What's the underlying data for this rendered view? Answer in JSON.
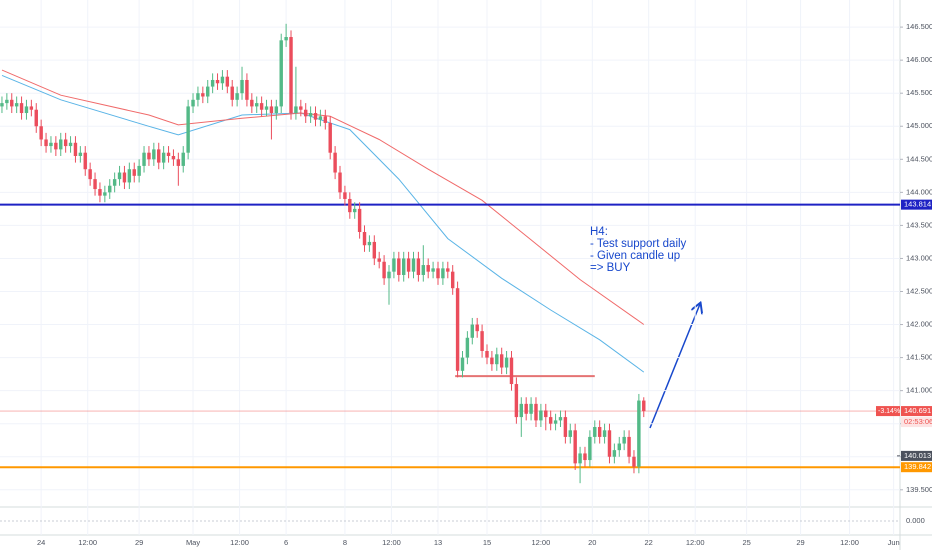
{
  "chart_data": {
    "type": "candlestick",
    "up_color": "#53b987",
    "down_color": "#eb4d5c",
    "open": [
      145.3,
      145.35,
      145.4,
      145.3,
      145.35,
      145.2,
      145.3,
      145.25,
      145.0,
      144.8,
      144.7,
      144.75,
      144.65,
      144.8,
      144.7,
      144.75,
      144.55,
      144.6,
      144.35,
      144.2,
      144.05,
      143.95,
      144.0,
      144.1,
      144.2,
      144.3,
      144.15,
      144.35,
      144.25,
      144.4,
      144.6,
      144.5,
      144.65,
      144.45,
      144.6,
      144.55,
      144.5,
      144.4,
      144.6,
      145.3,
      145.4,
      145.5,
      145.45,
      145.6,
      145.7,
      145.65,
      145.75,
      145.6,
      145.4,
      145.5,
      145.7,
      145.4,
      145.3,
      145.35,
      145.25,
      145.3,
      145.2,
      145.3,
      146.3,
      146.35,
      145.2,
      145.3,
      145.25,
      145.15,
      145.2,
      145.1,
      145.15,
      145.05,
      144.6,
      144.3,
      144.0,
      143.9,
      143.7,
      143.75,
      143.4,
      143.2,
      143.25,
      143.0,
      142.95,
      142.7,
      142.8,
      143.0,
      142.75,
      143.0,
      142.8,
      143.0,
      142.75,
      142.9,
      142.8,
      142.85,
      142.7,
      142.85,
      142.8,
      142.55,
      141.3,
      141.5,
      141.8,
      142.0,
      141.9,
      141.6,
      141.5,
      141.4,
      141.55,
      141.35,
      141.5,
      141.1,
      140.6,
      140.8,
      140.65,
      140.8,
      140.55,
      140.7,
      140.6,
      140.5,
      140.55,
      140.6,
      140.3,
      140.4,
      139.9,
      140.05,
      139.95,
      140.3,
      140.45,
      140.3,
      140.4,
      140.0,
      140.1,
      140.2,
      140.3,
      140.0,
      139.85,
      140.85
    ],
    "high": [
      145.45,
      145.5,
      145.5,
      145.45,
      145.45,
      145.4,
      145.4,
      145.35,
      145.1,
      144.9,
      144.85,
      144.85,
      144.9,
      144.9,
      144.85,
      144.85,
      144.7,
      144.7,
      144.45,
      144.3,
      144.15,
      144.1,
      144.2,
      144.3,
      144.4,
      144.4,
      144.45,
      144.45,
      144.5,
      144.7,
      144.7,
      144.75,
      144.75,
      144.7,
      144.7,
      144.65,
      144.6,
      144.7,
      145.4,
      145.5,
      145.6,
      145.6,
      145.7,
      145.8,
      145.8,
      145.85,
      145.85,
      145.7,
      145.6,
      145.9,
      145.8,
      145.5,
      145.45,
      145.45,
      145.4,
      145.4,
      145.4,
      146.4,
      146.55,
      146.45,
      145.9,
      145.4,
      145.35,
      145.3,
      145.3,
      145.25,
      145.25,
      145.15,
      144.7,
      144.4,
      144.1,
      144.0,
      143.85,
      143.85,
      143.5,
      143.35,
      143.35,
      143.1,
      143.05,
      142.9,
      143.1,
      143.1,
      143.1,
      143.1,
      143.1,
      143.1,
      143.2,
      143.0,
      142.95,
      142.95,
      142.95,
      142.95,
      142.9,
      142.65,
      141.6,
      141.9,
      142.1,
      142.1,
      142.0,
      141.7,
      141.6,
      141.65,
      141.65,
      141.6,
      141.6,
      141.2,
      140.9,
      140.9,
      140.9,
      140.9,
      140.8,
      140.8,
      140.7,
      140.65,
      140.7,
      140.7,
      140.5,
      140.5,
      140.15,
      140.15,
      140.4,
      140.55,
      140.55,
      140.5,
      140.5,
      140.2,
      140.3,
      140.4,
      140.4,
      140.1,
      140.95,
      140.9
    ],
    "low": [
      145.2,
      145.25,
      145.2,
      145.2,
      145.1,
      145.1,
      145.15,
      144.9,
      144.7,
      144.6,
      144.6,
      144.55,
      144.55,
      144.6,
      144.6,
      144.45,
      144.45,
      144.25,
      144.1,
      143.95,
      143.85,
      143.85,
      143.9,
      144.0,
      144.1,
      144.05,
      144.05,
      144.15,
      144.15,
      144.3,
      144.4,
      144.4,
      144.35,
      144.35,
      144.45,
      144.4,
      144.1,
      144.3,
      144.5,
      145.2,
      145.3,
      145.35,
      145.35,
      145.5,
      145.55,
      145.55,
      145.5,
      145.3,
      145.3,
      145.4,
      145.3,
      145.2,
      145.2,
      145.15,
      145.15,
      144.8,
      145.1,
      145.2,
      146.2,
      145.1,
      145.1,
      145.15,
      145.05,
      145.05,
      145.0,
      145.0,
      144.95,
      144.5,
      144.2,
      143.9,
      143.8,
      143.6,
      143.6,
      143.3,
      143.1,
      143.1,
      142.9,
      142.85,
      142.6,
      142.3,
      142.7,
      142.65,
      142.65,
      142.7,
      142.7,
      142.65,
      142.65,
      142.7,
      142.7,
      142.6,
      142.6,
      142.7,
      142.45,
      141.2,
      141.2,
      141.4,
      141.7,
      141.8,
      141.5,
      141.4,
      141.3,
      141.3,
      141.25,
      141.25,
      141.0,
      140.5,
      140.3,
      140.55,
      140.55,
      140.45,
      140.45,
      140.4,
      140.4,
      140.4,
      140.45,
      140.2,
      140.2,
      139.8,
      139.6,
      139.85,
      139.85,
      140.2,
      140.2,
      140.2,
      139.9,
      139.9,
      140.0,
      140.1,
      139.9,
      139.75,
      139.75,
      140.6
    ],
    "close": [
      145.35,
      145.4,
      145.3,
      145.35,
      145.2,
      145.3,
      145.25,
      145.0,
      144.8,
      144.7,
      144.75,
      144.65,
      144.8,
      144.7,
      144.75,
      144.55,
      144.6,
      144.35,
      144.2,
      144.05,
      143.95,
      144.0,
      144.1,
      144.2,
      144.3,
      144.15,
      144.35,
      144.25,
      144.4,
      144.6,
      144.5,
      144.65,
      144.45,
      144.6,
      144.55,
      144.5,
      144.4,
      144.6,
      145.3,
      145.4,
      145.5,
      145.45,
      145.6,
      145.7,
      145.65,
      145.75,
      145.6,
      145.4,
      145.5,
      145.7,
      145.4,
      145.3,
      145.35,
      145.25,
      145.3,
      145.2,
      145.3,
      146.3,
      146.35,
      145.2,
      145.3,
      145.25,
      145.15,
      145.2,
      145.1,
      145.15,
      145.05,
      144.6,
      144.3,
      144.0,
      143.9,
      143.7,
      143.75,
      143.4,
      143.2,
      143.25,
      143.0,
      142.95,
      142.7,
      142.8,
      143.0,
      142.75,
      143.0,
      142.8,
      143.0,
      142.75,
      142.9,
      142.8,
      142.85,
      142.7,
      142.85,
      142.8,
      142.55,
      141.3,
      141.5,
      141.8,
      142.0,
      141.9,
      141.6,
      141.5,
      141.4,
      141.55,
      141.35,
      141.5,
      141.1,
      140.6,
      140.8,
      140.65,
      140.8,
      140.55,
      140.7,
      140.6,
      140.5,
      140.55,
      140.6,
      140.3,
      140.4,
      139.9,
      140.05,
      139.95,
      140.3,
      140.45,
      140.3,
      140.4,
      140.0,
      140.1,
      140.2,
      140.3,
      140.0,
      139.85,
      140.85,
      140.69
    ],
    "averages": [
      {
        "color": "#5ab4e6",
        "x": [
          0,
          12,
          30,
          36,
          49,
          61,
          71,
          81,
          91,
          102,
          112,
          122,
          131
        ],
        "values": [
          145.77,
          145.4,
          145.0,
          144.87,
          145.17,
          145.2,
          144.95,
          144.2,
          143.3,
          142.7,
          142.22,
          141.77,
          141.28
        ]
      },
      {
        "color": "#f06a6a",
        "x": [
          0,
          12,
          30,
          36,
          49,
          61,
          67,
          77,
          87,
          98,
          108,
          118,
          131
        ],
        "values": [
          145.85,
          145.47,
          145.17,
          145.02,
          145.12,
          145.2,
          145.15,
          144.8,
          144.35,
          143.88,
          143.28,
          142.68,
          142.0
        ]
      }
    ],
    "levels": [
      {
        "value": 143.814,
        "label": "143.814",
        "color": "#1e22c4"
      },
      {
        "value": 139.842,
        "label": "139.842",
        "color": "#ff9800"
      }
    ],
    "segments": [
      {
        "value": 141.22,
        "x": [
          92.5,
          121
        ],
        "color": "#e57373"
      }
    ],
    "current": {
      "value": 140.691,
      "label": "140.691",
      "change": "-3.14%",
      "countdown": "02:53:06",
      "color": "#ef5350"
    },
    "price_labels": [
      {
        "value": 140.013,
        "label": "140.013",
        "color": "#4c525e"
      }
    ],
    "annotation": [
      "H4:",
      "- Test support daily",
      "- Given candle up",
      "=> BUY"
    ],
    "xlim": [
      -0.4,
      183.3
    ],
    "xticks": [
      {
        "value": 8,
        "label": "24"
      },
      {
        "value": 17.5,
        "label": "12:00"
      },
      {
        "value": 28,
        "label": "29"
      },
      {
        "value": 39,
        "label": "May"
      },
      {
        "value": 48.5,
        "label": "12:00"
      },
      {
        "value": 58,
        "label": "6"
      },
      {
        "value": 70,
        "label": "8"
      },
      {
        "value": 79.5,
        "label": "12:00"
      },
      {
        "value": 89,
        "label": "13"
      },
      {
        "value": 99,
        "label": "15"
      },
      {
        "value": 110,
        "label": "12:00"
      },
      {
        "value": 120.5,
        "label": "20"
      },
      {
        "value": 132,
        "label": "22"
      },
      {
        "value": 141.5,
        "label": "12:00"
      },
      {
        "value": 152,
        "label": "25"
      },
      {
        "value": 163,
        "label": "29"
      },
      {
        "value": 173,
        "label": "12:00"
      },
      {
        "value": 182,
        "label": "Jun"
      }
    ],
    "ylim": [
      139.27,
      146.91
    ],
    "yticks": [
      {
        "value": 139.5,
        "label": "139.500"
      },
      {
        "value": 140,
        "label": "140.000"
      },
      {
        "value": 140.5,
        "label": "140.500"
      },
      {
        "value": 141,
        "label": "141.000"
      },
      {
        "value": 141.5,
        "label": "141.500"
      },
      {
        "value": 142,
        "label": "142.000"
      },
      {
        "value": 142.5,
        "label": "142.500"
      },
      {
        "value": 143,
        "label": "143.000"
      },
      {
        "value": 143.5,
        "label": "143.500"
      },
      {
        "value": 144,
        "label": "144.000"
      },
      {
        "value": 144.5,
        "label": "144.500"
      },
      {
        "value": 145,
        "label": "145.000"
      },
      {
        "value": 145.5,
        "label": "145.500"
      },
      {
        "value": 146,
        "label": "146.000"
      },
      {
        "value": 146.5,
        "label": "146.500"
      }
    ],
    "indicator_yticks": [
      {
        "value": 0,
        "label": "0.000"
      }
    ],
    "grid": true
  }
}
